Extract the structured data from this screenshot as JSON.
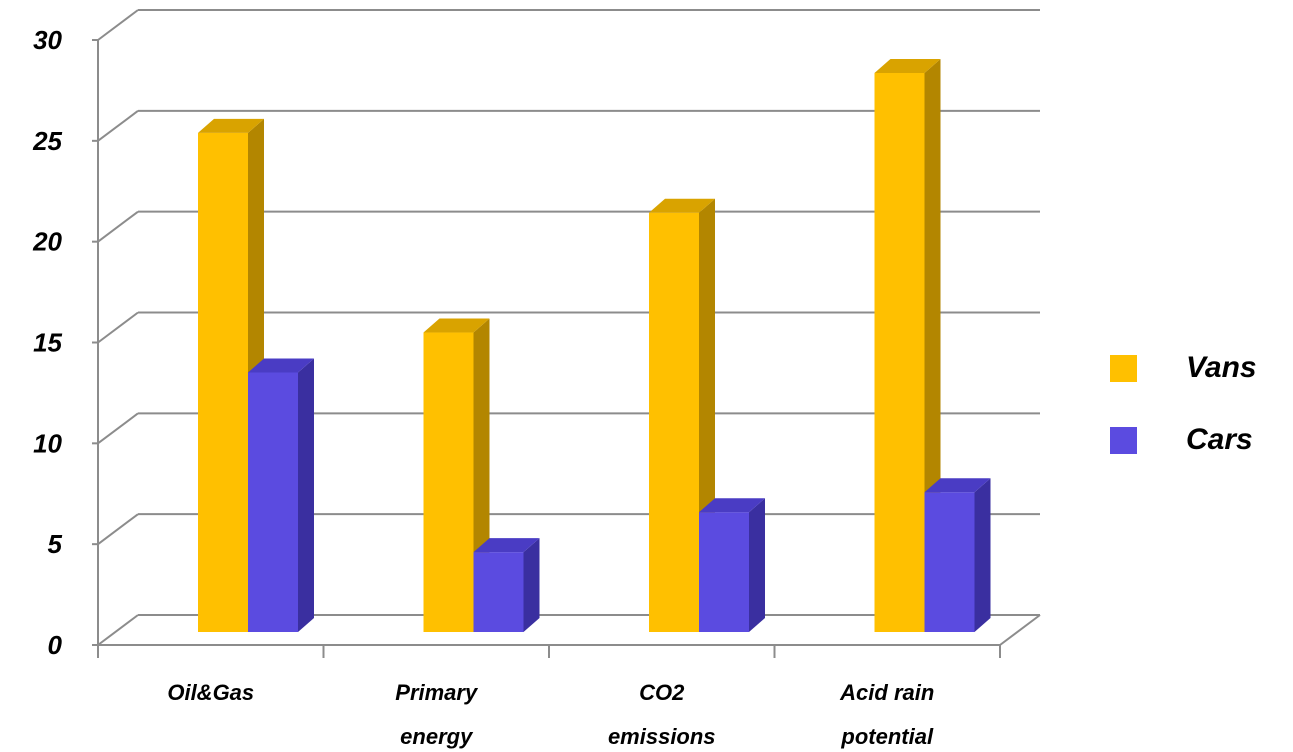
{
  "chart_data": {
    "type": "bar",
    "categories": [
      [
        "Oil&Gas"
      ],
      [
        "Primary",
        "energy"
      ],
      [
        "CO2",
        "emissions"
      ],
      [
        "Acid rain",
        "potential"
      ]
    ],
    "series": [
      {
        "name": "Vans",
        "values": [
          25,
          15,
          21,
          28
        ],
        "color": "#FFC000",
        "side_color": "#B38600",
        "top_color": "#D9A300"
      },
      {
        "name": "Cars",
        "values": [
          13,
          4,
          6,
          7
        ],
        "color": "#5B4BE0",
        "side_color": "#3A2FA0",
        "top_color": "#4A3CC4"
      }
    ],
    "ylim": [
      0,
      30
    ],
    "yticks": [
      0,
      5,
      10,
      15,
      20,
      25,
      30
    ],
    "grid": true,
    "legend": "right",
    "style": "3d-clustered-column"
  }
}
